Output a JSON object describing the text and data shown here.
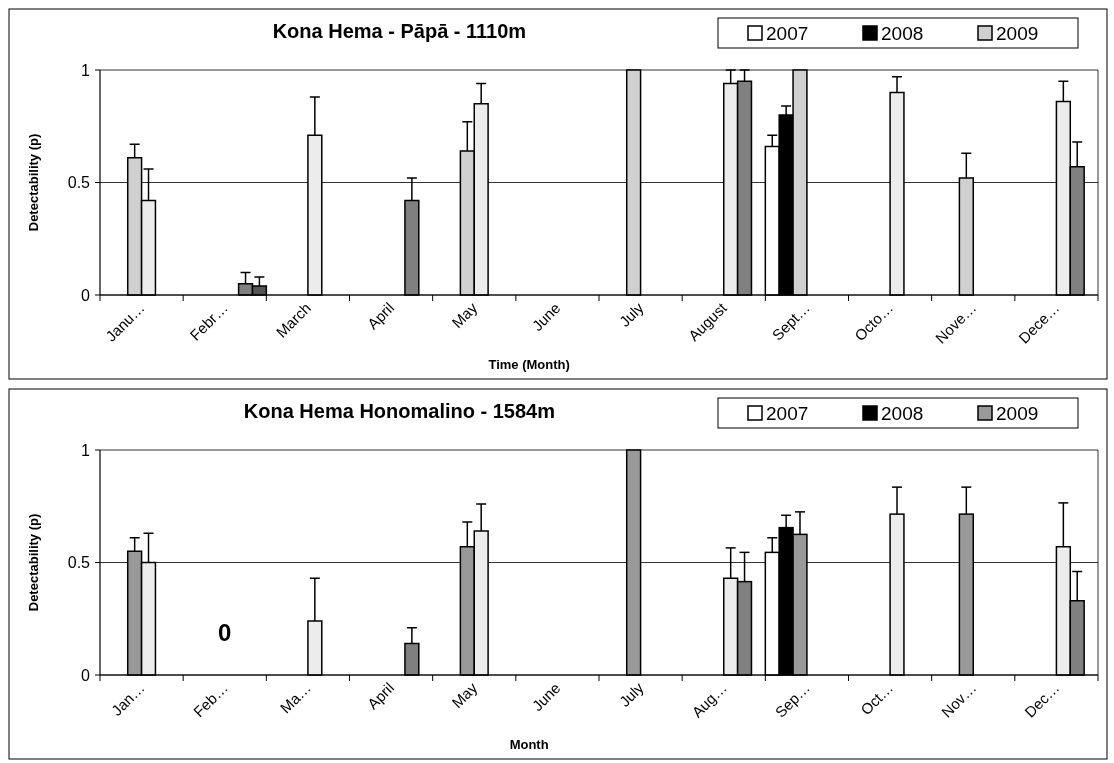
{
  "chart_data": [
    {
      "type": "bar",
      "title": "Kona Hema - Pāpā - 1110m",
      "xlabel": "Time (Month)",
      "ylabel": "Detectability (p)",
      "categories": [
        "Janu…",
        "Febr…",
        "March",
        "April",
        "May",
        "June",
        "July",
        "August",
        "Sept…",
        "Octo…",
        "Nove…",
        "Dece…"
      ],
      "ylim": [
        0,
        1
      ],
      "yticks": [
        0,
        0.5,
        1
      ],
      "grid": "y",
      "legend": "top right",
      "series": [
        {
          "name": "2007",
          "color": "#ffffff",
          "values": [
            null,
            null,
            null,
            null,
            null,
            null,
            null,
            null,
            0.66,
            null,
            null,
            null
          ],
          "errors": [
            null,
            null,
            null,
            null,
            null,
            null,
            null,
            null,
            0.05,
            null,
            null,
            null
          ]
        },
        {
          "name": "2008",
          "color": "#000000",
          "values": [
            null,
            null,
            null,
            null,
            null,
            null,
            null,
            null,
            0.8,
            null,
            null,
            null
          ],
          "errors": [
            null,
            null,
            null,
            null,
            null,
            null,
            null,
            null,
            0.04,
            null,
            null,
            null
          ]
        },
        {
          "name": "2009",
          "color": "#d0d0d0",
          "values": [
            0.61,
            null,
            null,
            null,
            0.64,
            null,
            1,
            null,
            1,
            null,
            0.52,
            null
          ],
          "errors": [
            0.06,
            null,
            null,
            null,
            0.13,
            null,
            null,
            null,
            null,
            null,
            0.11,
            null
          ]
        },
        {
          "color": "#ececec",
          "values": [
            0.42,
            null,
            0.71,
            null,
            0.85,
            null,
            null,
            0.94,
            null,
            0.9,
            null,
            0.86
          ],
          "errors": [
            0.14,
            null,
            0.17,
            null,
            0.09,
            null,
            null,
            0.06,
            null,
            0.07,
            null,
            0.09
          ]
        },
        {
          "color": "#808080",
          "values": [
            null,
            0.05,
            null,
            0.42,
            null,
            null,
            null,
            0.95,
            null,
            null,
            null,
            0.57
          ],
          "errors": [
            null,
            0.05,
            null,
            0.1,
            null,
            null,
            null,
            0.05,
            null,
            null,
            null,
            0.11
          ]
        },
        {
          "color": "#555555",
          "values": [
            null,
            0.04,
            null,
            null,
            null,
            null,
            null,
            null,
            null,
            null,
            null,
            null
          ],
          "errors": [
            null,
            0.04,
            null,
            null,
            null,
            null,
            null,
            null,
            null,
            null,
            null,
            null
          ]
        }
      ]
    },
    {
      "type": "bar",
      "title": "Kona Hema Honomalino - 1584m",
      "xlabel": "Month",
      "ylabel": "Detectability (p)",
      "categories": [
        "Jan…",
        "Feb…",
        "Ma…",
        "April",
        "May",
        "June",
        "July",
        "Aug…",
        "Sep…",
        "Oct…",
        "Nov…",
        "Dec…"
      ],
      "ylim": [
        0,
        1
      ],
      "yticks": [
        0,
        0.5,
        1
      ],
      "grid": "y",
      "legend": "top right",
      "annotations": [
        "0"
      ],
      "series": [
        {
          "name": "2007",
          "color": "#ffffff",
          "values": [
            null,
            null,
            null,
            null,
            null,
            null,
            null,
            null,
            0.545,
            null,
            null,
            null
          ],
          "errors": [
            null,
            null,
            null,
            null,
            null,
            null,
            null,
            null,
            0.065,
            null,
            null,
            null
          ]
        },
        {
          "name": "2008",
          "color": "#000000",
          "values": [
            null,
            null,
            null,
            null,
            null,
            null,
            null,
            null,
            0.655,
            null,
            null,
            null
          ],
          "errors": [
            null,
            null,
            null,
            null,
            null,
            null,
            null,
            null,
            0.055,
            null,
            null,
            null
          ]
        },
        {
          "name": "2009",
          "color": "#999999",
          "values": [
            0.55,
            null,
            null,
            null,
            0.57,
            null,
            1,
            null,
            0.625,
            null,
            0.715,
            null
          ],
          "errors": [
            0.06,
            null,
            null,
            null,
            0.11,
            null,
            null,
            null,
            0.1,
            null,
            0.12,
            null
          ]
        },
        {
          "color": "#ececec",
          "values": [
            0.5,
            null,
            0.24,
            null,
            0.64,
            null,
            null,
            0.43,
            null,
            0.715,
            null,
            0.57
          ],
          "errors": [
            0.13,
            null,
            0.19,
            null,
            0.12,
            null,
            null,
            0.135,
            null,
            0.12,
            null,
            0.195
          ]
        },
        {
          "color": "#808080",
          "values": [
            null,
            null,
            null,
            0.14,
            null,
            null,
            null,
            0.415,
            null,
            null,
            null,
            0.33
          ],
          "errors": [
            null,
            null,
            null,
            0.07,
            null,
            null,
            null,
            0.13,
            null,
            null,
            null,
            0.13
          ]
        }
      ]
    }
  ]
}
